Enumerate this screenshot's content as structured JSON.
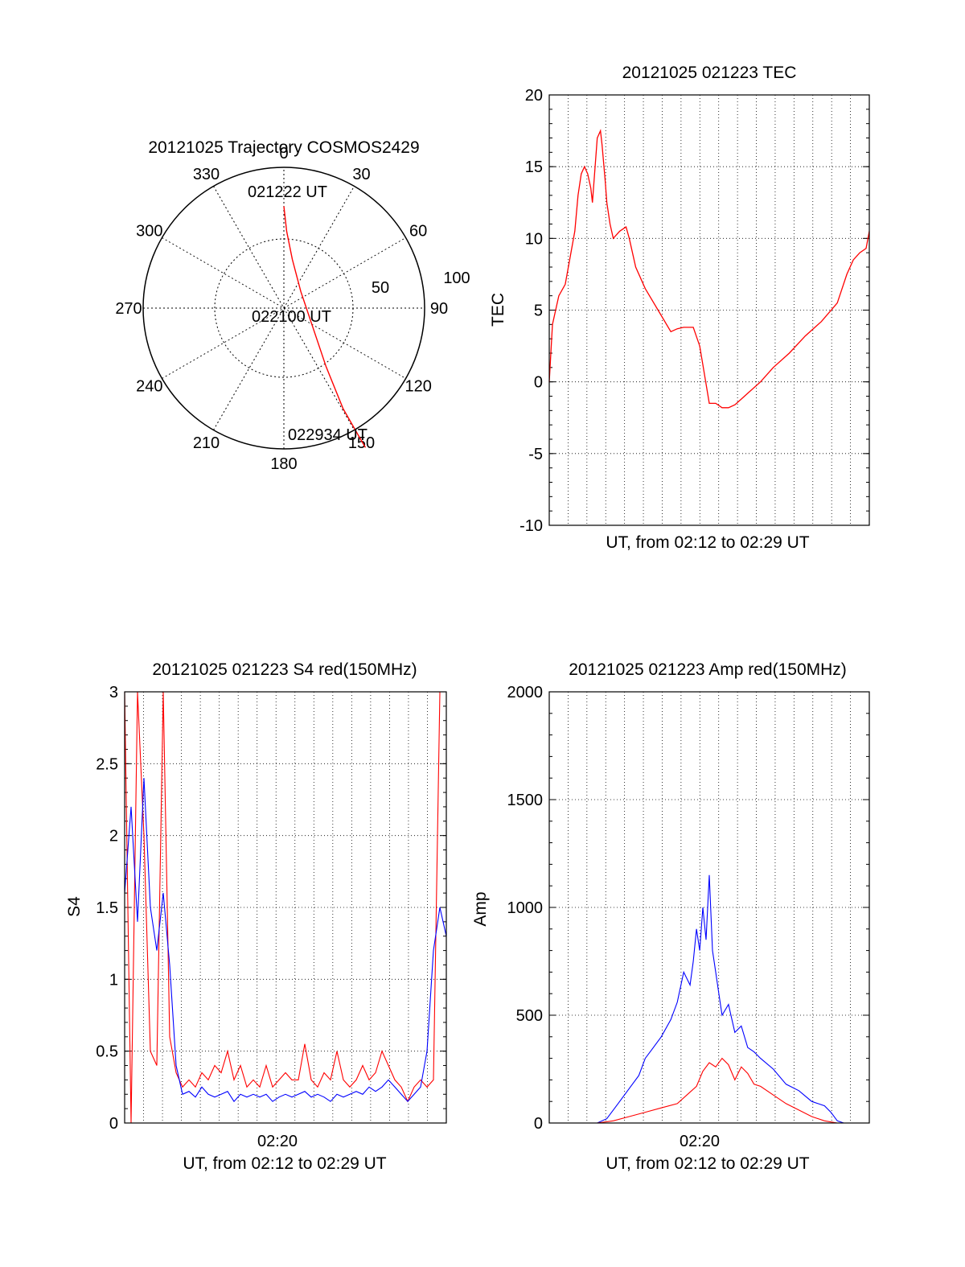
{
  "chart_data": [
    {
      "type": "polar",
      "title": "20121025 Trajectory COSMOS2429",
      "angle_labels": [
        "0",
        "30",
        "60",
        "90",
        "120",
        "150",
        "180",
        "210",
        "240",
        "270",
        "300",
        "330"
      ],
      "radius_labels": [
        "50",
        "100"
      ],
      "time_labels": {
        "start": "021222 UT",
        "mid": "022100 UT",
        "end": "022934 UT"
      },
      "trajectory": {
        "color": "#ff0000",
        "points": [
          [
            0,
            0.73
          ],
          [
            0.02,
            0.55
          ],
          [
            0.06,
            0.35
          ],
          [
            0.12,
            0.12
          ],
          [
            0.2,
            -0.12
          ],
          [
            0.3,
            -0.42
          ],
          [
            0.42,
            -0.72
          ],
          [
            0.55,
            -0.95
          ],
          [
            0.58,
            -1.0
          ]
        ]
      }
    },
    {
      "type": "line",
      "title": "20121025 021223 TEC",
      "xlabel": "UT, from 02:12 to 02:29 UT",
      "ylabel": "TEC",
      "ylim": [
        -10,
        20
      ],
      "yticks": [
        "20",
        "15",
        "10",
        "5",
        "0",
        "-5",
        "-10"
      ],
      "grid": true,
      "series": [
        {
          "color": "#ff0000",
          "x": [
            0.0,
            0.01,
            0.03,
            0.05,
            0.08,
            0.09,
            0.1,
            0.11,
            0.12,
            0.13,
            0.135,
            0.14,
            0.15,
            0.16,
            0.165,
            0.175,
            0.18,
            0.19,
            0.2,
            0.22,
            0.24,
            0.25,
            0.27,
            0.3,
            0.34,
            0.38,
            0.4,
            0.42,
            0.45,
            0.47,
            0.48,
            0.5,
            0.52,
            0.54,
            0.56,
            0.58,
            0.6,
            0.62,
            0.66,
            0.7,
            0.75,
            0.8,
            0.85,
            0.9,
            0.93,
            0.95,
            0.97,
            0.99,
            1.0
          ],
          "y": [
            0,
            4,
            6,
            6.8,
            10.5,
            13,
            14.5,
            15,
            14.5,
            13.5,
            12.5,
            14,
            17,
            17.5,
            16.5,
            14,
            12.5,
            11,
            10,
            10.5,
            10.8,
            10,
            8,
            6.5,
            5,
            3.5,
            3.7,
            3.8,
            3.8,
            2.5,
            1.2,
            -1.5,
            -1.5,
            -1.8,
            -1.8,
            -1.6,
            -1.2,
            -0.8,
            0,
            1,
            2,
            3.2,
            4.2,
            5.5,
            7.5,
            8.5,
            9,
            9.3,
            10.5
          ]
        }
      ]
    },
    {
      "type": "line",
      "title": "20121025 021223 S4 red(150MHz)",
      "xlabel": "UT, from 02:12 to 02:29 UT",
      "ylabel": "S4",
      "xtick": "02:20",
      "ylim": [
        0,
        3
      ],
      "yticks": [
        "3",
        "2.5",
        "2",
        "1.5",
        "1",
        "0.5",
        "0"
      ],
      "grid": true,
      "series": [
        {
          "name": "",
          "color": "#ff0000",
          "x": [
            0.0,
            0.02,
            0.04,
            0.06,
            0.08,
            0.1,
            0.12,
            0.14,
            0.16,
            0.18,
            0.2,
            0.22,
            0.24,
            0.26,
            0.28,
            0.3,
            0.32,
            0.34,
            0.36,
            0.38,
            0.4,
            0.42,
            0.44,
            0.46,
            0.48,
            0.5,
            0.52,
            0.54,
            0.56,
            0.58,
            0.6,
            0.62,
            0.64,
            0.66,
            0.68,
            0.7,
            0.72,
            0.74,
            0.76,
            0.78,
            0.8,
            0.82,
            0.84,
            0.86,
            0.88,
            0.9,
            0.92,
            0.94,
            0.96,
            0.98,
            1.0
          ],
          "y": [
            3,
            0,
            3,
            2,
            0.5,
            0.4,
            3,
            0.6,
            0.35,
            0.25,
            0.3,
            0.25,
            0.35,
            0.3,
            0.4,
            0.35,
            0.5,
            0.3,
            0.4,
            0.25,
            0.3,
            0.25,
            0.4,
            0.25,
            0.3,
            0.35,
            0.3,
            0.3,
            0.55,
            0.3,
            0.25,
            0.35,
            0.3,
            0.5,
            0.3,
            0.25,
            0.3,
            0.4,
            0.3,
            0.35,
            0.5,
            0.4,
            0.3,
            0.25,
            0.15,
            0.25,
            0.3,
            0.25,
            0.3,
            3,
            3
          ]
        },
        {
          "name": "",
          "color": "#0000ff",
          "x": [
            0.0,
            0.02,
            0.04,
            0.06,
            0.08,
            0.1,
            0.12,
            0.14,
            0.16,
            0.18,
            0.2,
            0.22,
            0.24,
            0.26,
            0.28,
            0.3,
            0.32,
            0.34,
            0.36,
            0.38,
            0.4,
            0.42,
            0.44,
            0.46,
            0.48,
            0.5,
            0.52,
            0.54,
            0.56,
            0.58,
            0.6,
            0.62,
            0.64,
            0.66,
            0.68,
            0.7,
            0.72,
            0.74,
            0.76,
            0.78,
            0.8,
            0.82,
            0.84,
            0.86,
            0.88,
            0.9,
            0.92,
            0.94,
            0.96,
            0.98,
            1.0
          ],
          "y": [
            1.6,
            2.2,
            1.4,
            2.4,
            1.5,
            1.2,
            1.6,
            1.1,
            0.4,
            0.2,
            0.22,
            0.18,
            0.25,
            0.2,
            0.18,
            0.2,
            0.22,
            0.15,
            0.2,
            0.18,
            0.2,
            0.18,
            0.2,
            0.15,
            0.18,
            0.2,
            0.18,
            0.2,
            0.22,
            0.18,
            0.2,
            0.18,
            0.15,
            0.2,
            0.18,
            0.2,
            0.22,
            0.2,
            0.25,
            0.22,
            0.25,
            0.3,
            0.25,
            0.2,
            0.15,
            0.2,
            0.25,
            0.5,
            1.2,
            1.5,
            1.3
          ]
        }
      ]
    },
    {
      "type": "line",
      "title": "20121025 021223 Amp red(150MHz)",
      "xlabel": "UT, from 02:12 to 02:29 UT",
      "ylabel": "Amp",
      "xtick": "02:20",
      "ylim": [
        0,
        2000
      ],
      "yticks": [
        "2000",
        "1500",
        "1000",
        "500",
        "0"
      ],
      "grid": true,
      "series": [
        {
          "name": "",
          "color": "#0000ff",
          "x": [
            0.0,
            0.1,
            0.15,
            0.18,
            0.2,
            0.22,
            0.25,
            0.28,
            0.3,
            0.32,
            0.35,
            0.38,
            0.4,
            0.42,
            0.44,
            0.45,
            0.46,
            0.47,
            0.48,
            0.49,
            0.5,
            0.51,
            0.52,
            0.53,
            0.54,
            0.56,
            0.58,
            0.6,
            0.62,
            0.64,
            0.66,
            0.7,
            0.74,
            0.78,
            0.82,
            0.86,
            0.88,
            0.9,
            0.92,
            1.0
          ],
          "y": [
            0,
            0,
            0,
            20,
            60,
            100,
            160,
            220,
            300,
            340,
            400,
            480,
            560,
            700,
            640,
            750,
            900,
            800,
            1000,
            850,
            1150,
            800,
            700,
            600,
            500,
            550,
            420,
            450,
            350,
            330,
            300,
            250,
            180,
            150,
            100,
            80,
            50,
            10,
            0,
            0
          ]
        },
        {
          "name": "",
          "color": "#ff0000",
          "x": [
            0.0,
            0.15,
            0.2,
            0.25,
            0.3,
            0.35,
            0.4,
            0.43,
            0.46,
            0.48,
            0.5,
            0.52,
            0.54,
            0.56,
            0.58,
            0.6,
            0.62,
            0.64,
            0.66,
            0.7,
            0.74,
            0.78,
            0.82,
            0.86,
            0.9,
            1.0
          ],
          "y": [
            0,
            0,
            10,
            30,
            50,
            70,
            90,
            130,
            170,
            240,
            280,
            260,
            300,
            270,
            200,
            260,
            230,
            180,
            170,
            130,
            90,
            60,
            30,
            10,
            0,
            0
          ]
        }
      ]
    }
  ]
}
